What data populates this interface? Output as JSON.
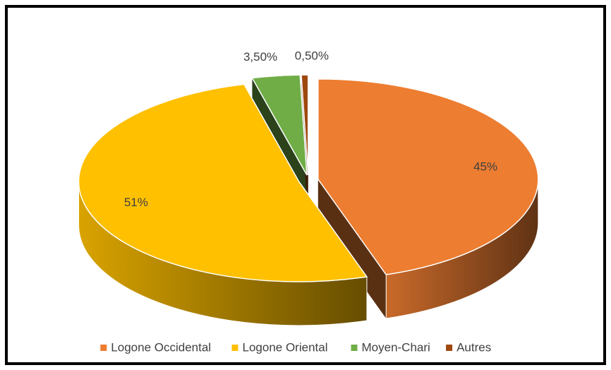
{
  "chart_data": {
    "type": "pie3d",
    "categories": [
      "Logone Occidental",
      "Logone Oriental",
      "Moyen-Chari",
      "Autres"
    ],
    "values": [
      45,
      51,
      3.5,
      0.5
    ],
    "value_labels": [
      "45%",
      "51%",
      "3,50%",
      "0,50%"
    ],
    "colors": [
      "#ed7d31",
      "#ffc000",
      "#70ad47",
      "#9e480e"
    ],
    "legend": "bottom"
  }
}
